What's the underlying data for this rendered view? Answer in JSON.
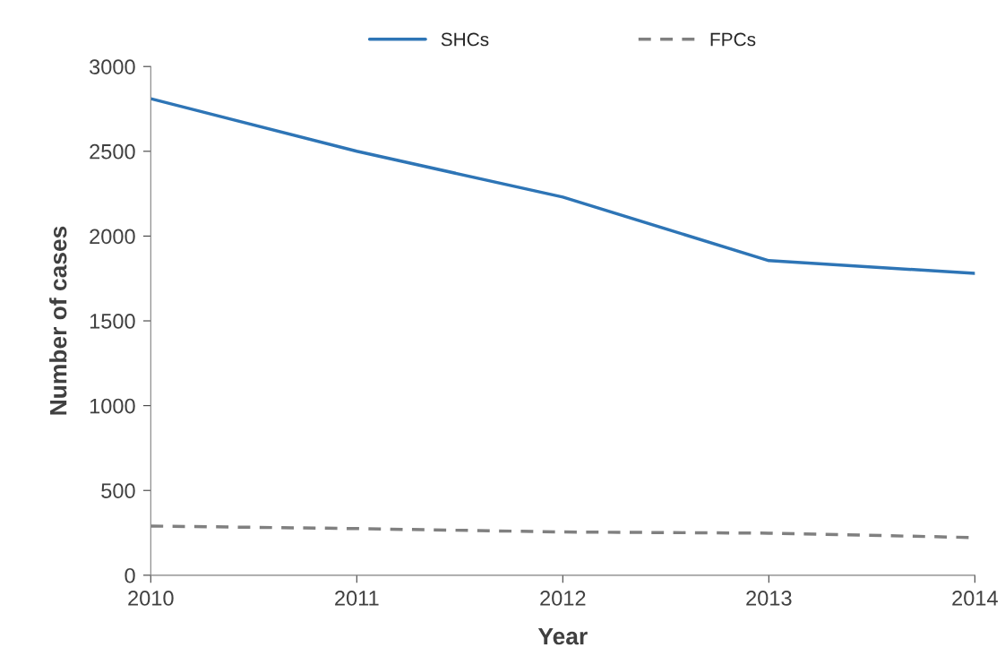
{
  "chart_data": {
    "type": "line",
    "xlabel": "Year",
    "ylabel": "Number of cases",
    "x": [
      2010,
      2011,
      2012,
      2013,
      2014
    ],
    "series": [
      {
        "name": "SHCs",
        "color": "#2e75b6",
        "line_style": "solid",
        "values": [
          2810,
          2500,
          2230,
          1855,
          1780
        ]
      },
      {
        "name": "FPCs",
        "color": "#808080",
        "line_style": "dashed",
        "values": [
          290,
          275,
          255,
          248,
          222
        ]
      }
    ],
    "xlim": [
      2010,
      2014
    ],
    "xticks": [
      2010,
      2011,
      2012,
      2013,
      2014
    ],
    "ylim": [
      0,
      3000
    ],
    "yticks": [
      0,
      500,
      1000,
      1500,
      2000,
      2500,
      3000
    ],
    "grid": false,
    "legend": "top",
    "marker": "none"
  }
}
